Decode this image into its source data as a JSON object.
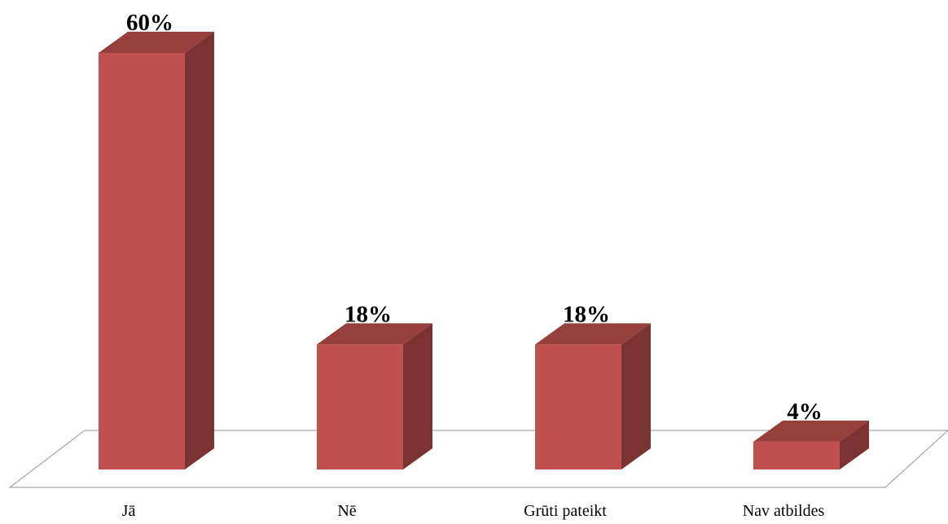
{
  "chart_data": {
    "type": "bar",
    "categories": [
      "Jā",
      "Nē",
      "Grūti pateikt",
      "Nav atbildes"
    ],
    "values": [
      60,
      18,
      18,
      4
    ],
    "data_labels": [
      "60%",
      "18%",
      "18%",
      "4%"
    ],
    "value_unit": "%",
    "title": "",
    "xlabel": "",
    "ylabel": "",
    "ylim": [
      0,
      60
    ],
    "grid": false,
    "legend": "none",
    "style": "3d-column",
    "colors": {
      "front": "#C0504D",
      "side": "#7A3330",
      "top": "#963F3C",
      "floor": "#A6A6A6"
    }
  }
}
